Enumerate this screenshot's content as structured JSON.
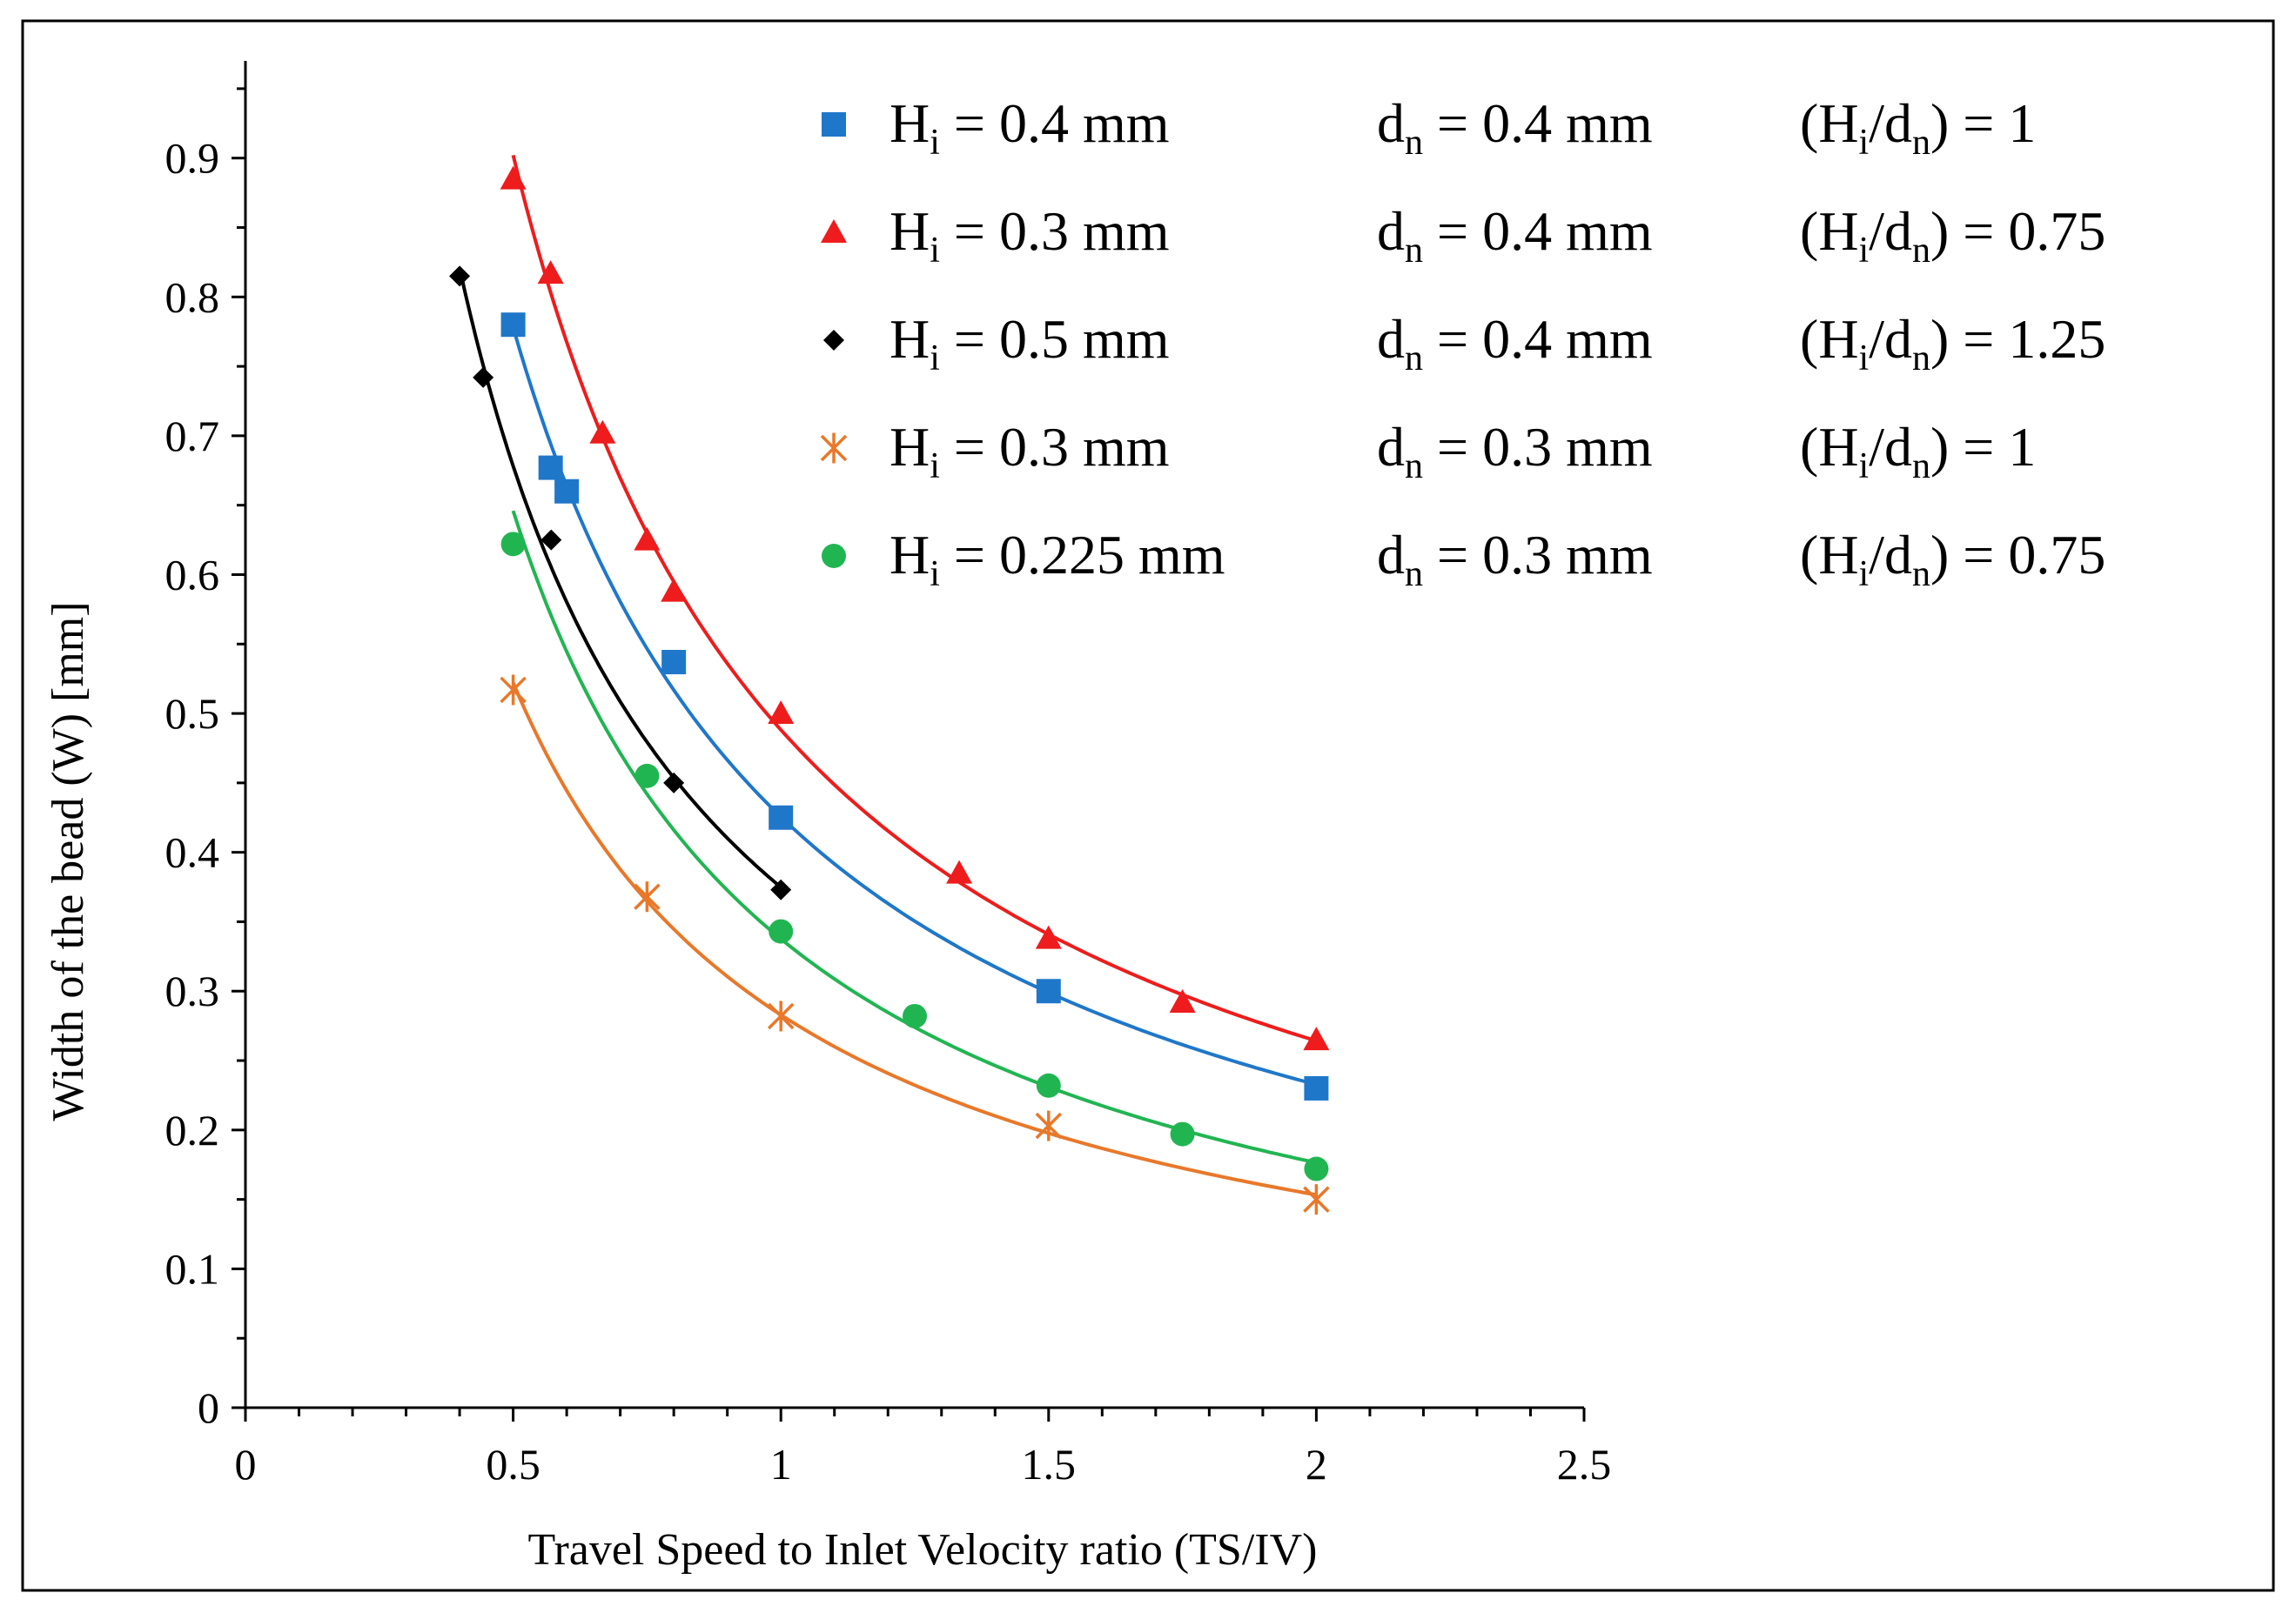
{
  "chart_data": {
    "type": "scatter",
    "xlabel": "Travel Speed to Inlet Velocity ratio (TS/IV)",
    "ylabel": "Width of the bead (W) [mm]",
    "xlim": [
      0,
      2.5
    ],
    "ylim": [
      0,
      0.97
    ],
    "x_ticks": [
      "0",
      "0.5",
      "1",
      "1.5",
      "2",
      "2.5"
    ],
    "y_ticks": [
      "0",
      "0.1",
      "0.2",
      "0.3",
      "0.4",
      "0.5",
      "0.6",
      "0.7",
      "0.8",
      "0.9"
    ],
    "x_tick_values": [
      0,
      0.5,
      1,
      1.5,
      2,
      2.5
    ],
    "y_tick_values": [
      0,
      0.1,
      0.2,
      0.3,
      0.4,
      0.5,
      0.6,
      0.7,
      0.8,
      0.9
    ],
    "grid": false,
    "legend_position": "top-right",
    "series": [
      {
        "marker": "square",
        "color": "#1f77c9",
        "legend": {
          "hi": "0.4 mm",
          "dn": "0.4 mm",
          "ratio": "1"
        },
        "x": [
          0.5,
          0.57,
          0.6,
          0.8,
          1.0,
          1.5,
          2.0
        ],
        "y": [
          0.78,
          0.677,
          0.66,
          0.537,
          0.425,
          0.3,
          0.23
        ]
      },
      {
        "marker": "triangle",
        "color": "#ee1c1c",
        "legend": {
          "hi": "0.3 mm",
          "dn": "0.4 mm",
          "ratio": "0.75"
        },
        "x": [
          0.5,
          0.57,
          0.667,
          0.75,
          0.8,
          1.0,
          1.333,
          1.5,
          1.75,
          2.0
        ],
        "y": [
          0.885,
          0.817,
          0.702,
          0.625,
          0.588,
          0.5,
          0.385,
          0.338,
          0.292,
          0.265
        ]
      },
      {
        "marker": "diamond",
        "color": "#000000",
        "legend": {
          "hi": "0.5 mm",
          "dn": "0.4 mm",
          "ratio": "1.25"
        },
        "x": [
          0.4,
          0.444,
          0.571,
          0.8,
          1.0
        ],
        "y": [
          0.815,
          0.742,
          0.625,
          0.45,
          0.373
        ]
      },
      {
        "marker": "star",
        "color": "#e8782a",
        "legend": {
          "hi": "0.3 mm",
          "dn": "0.3 mm",
          "ratio": "1"
        },
        "x": [
          0.5,
          0.75,
          1.0,
          1.5,
          2.0
        ],
        "y": [
          0.517,
          0.368,
          0.282,
          0.203,
          0.15
        ]
      },
      {
        "marker": "circle",
        "color": "#21b552",
        "legend": {
          "hi": "0.225 mm",
          "dn": "0.3 mm",
          "ratio": "0.75"
        },
        "x": [
          0.5,
          0.75,
          1.0,
          1.25,
          1.5,
          1.75,
          2.0
        ],
        "y": [
          0.622,
          0.455,
          0.343,
          0.282,
          0.232,
          0.197,
          0.172
        ]
      }
    ]
  }
}
